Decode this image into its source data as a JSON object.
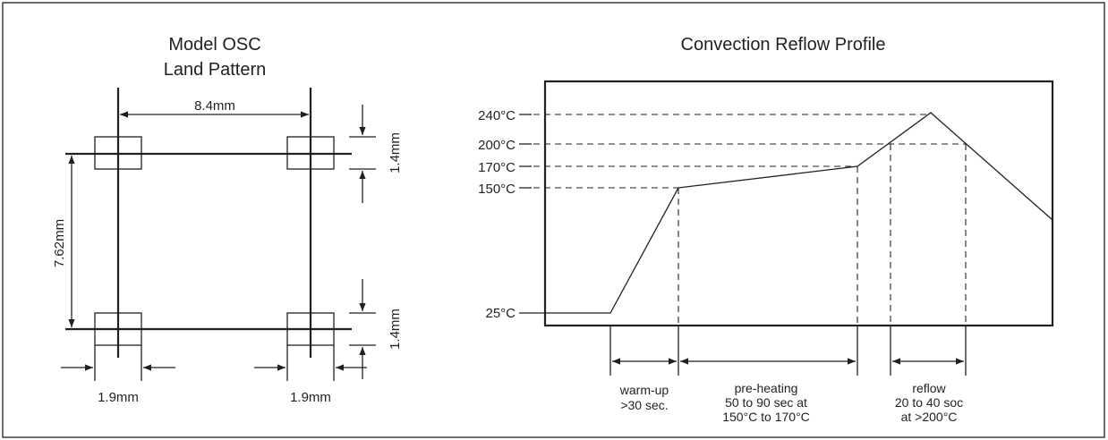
{
  "colors": {
    "line": "#231f20",
    "background": "#ffffff"
  },
  "land_pattern": {
    "title_line1": "Model OSC",
    "title_line2": "Land Pattern",
    "dim_width": "8.4mm",
    "dim_height": "7.62mm",
    "dim_pad_height_top": "1.4mm",
    "dim_pad_height_bottom": "1.4mm",
    "dim_pad_width_left": "1.9mm",
    "dim_pad_width_right": "1.9mm"
  },
  "reflow": {
    "title": "Convection Reflow Profile",
    "temps": {
      "t240": "240°C",
      "t200": "200°C",
      "t170": "170°C",
      "t150": "150°C",
      "t25": "25°C"
    },
    "phases": {
      "warmup_line1": "warm-up",
      "warmup_line2": ">30 sec.",
      "preheat_line1": "pre-heating",
      "preheat_line2": "50 to 90 sec at",
      "preheat_line3": "150°C to 170°C",
      "reflow_line1": "reflow",
      "reflow_line2": "20 to 40 soc",
      "reflow_line3": "at >200°C"
    }
  }
}
